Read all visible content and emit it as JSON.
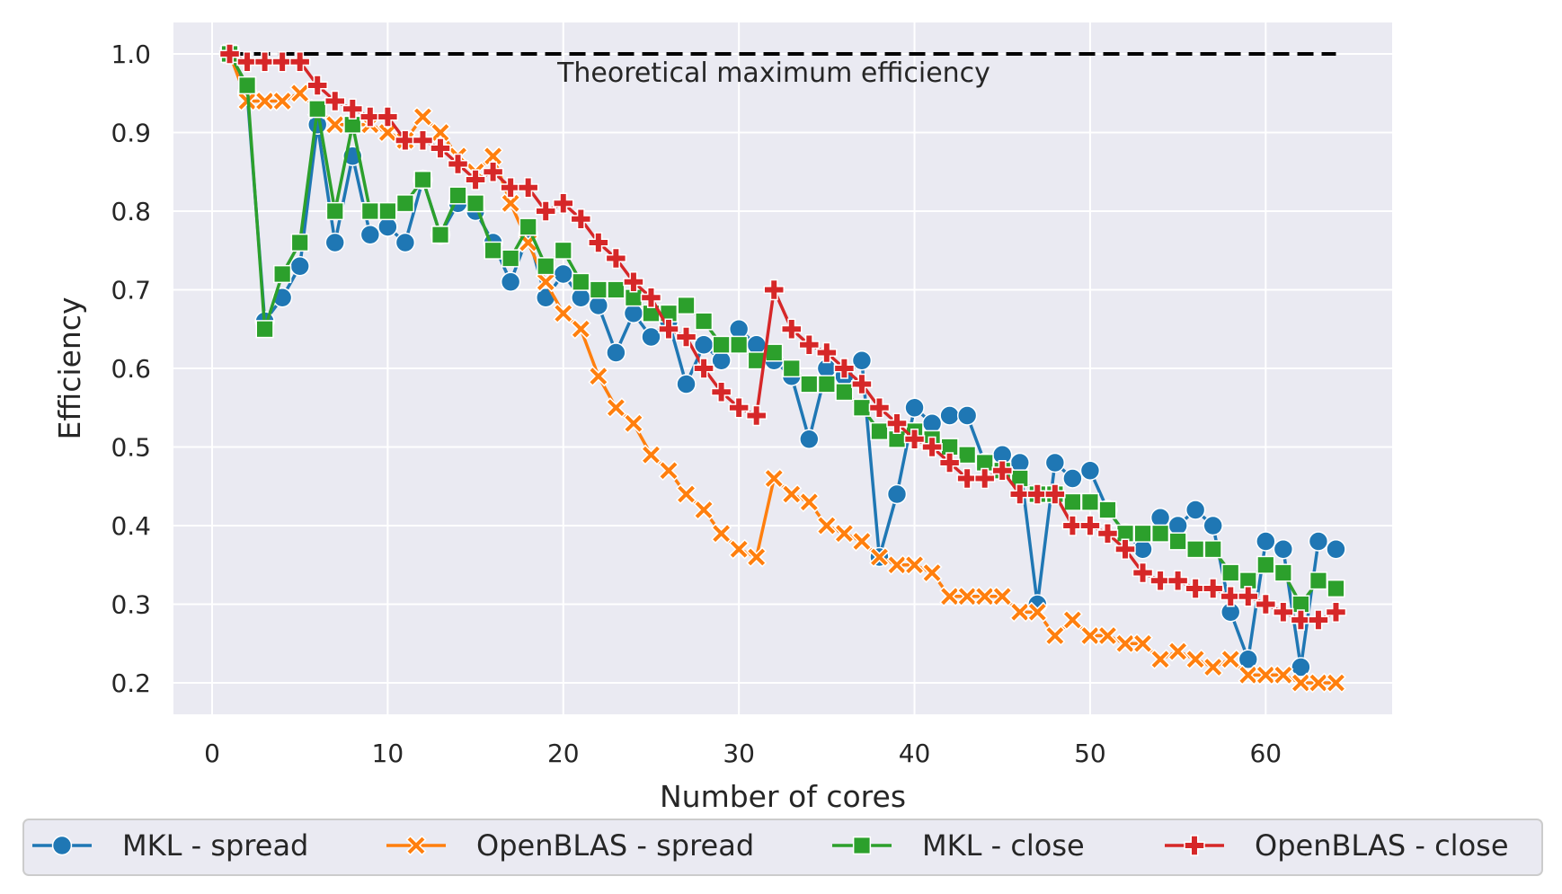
{
  "chart_data": {
    "type": "line",
    "xlabel": "Number of cores",
    "ylabel": "Efficiency",
    "xlim": [
      -2.2,
      67.2
    ],
    "ylim": [
      0.16,
      1.04
    ],
    "xticks": [
      0,
      10,
      20,
      30,
      40,
      50,
      60
    ],
    "yticks": [
      0.2,
      0.3,
      0.4,
      0.5,
      0.6,
      0.7,
      0.8,
      0.9,
      1.0
    ],
    "ytick_labels": [
      "0.2",
      "0.3",
      "0.4",
      "0.5",
      "0.6",
      "0.7",
      "0.8",
      "0.9",
      "1.0"
    ],
    "grid": true,
    "legend_position": "below",
    "reference_line": {
      "y": 1.0,
      "x": [
        1,
        64
      ],
      "style": "dashed",
      "color": "#000000",
      "label": "Theoretical maximum efficiency"
    },
    "x": [
      1,
      2,
      3,
      4,
      5,
      6,
      7,
      8,
      9,
      10,
      11,
      12,
      13,
      14,
      15,
      16,
      17,
      18,
      19,
      20,
      21,
      22,
      23,
      24,
      25,
      26,
      27,
      28,
      29,
      30,
      31,
      32,
      33,
      34,
      35,
      36,
      37,
      38,
      39,
      40,
      41,
      42,
      43,
      44,
      45,
      46,
      47,
      48,
      49,
      50,
      51,
      52,
      53,
      54,
      55,
      56,
      57,
      58,
      59,
      60,
      61,
      62,
      63,
      64
    ],
    "series": [
      {
        "name": "MKL - spread",
        "color": "#1f77b4",
        "marker": "circle",
        "values": [
          1.0,
          0.95,
          0.66,
          0.69,
          0.73,
          0.91,
          0.76,
          0.87,
          0.77,
          0.78,
          0.76,
          0.84,
          0.77,
          0.81,
          0.8,
          0.76,
          0.71,
          0.77,
          0.69,
          0.72,
          0.69,
          0.68,
          0.62,
          0.67,
          0.64,
          0.66,
          0.58,
          0.63,
          0.61,
          0.65,
          0.63,
          0.61,
          0.59,
          0.51,
          0.6,
          0.59,
          0.61,
          0.36,
          0.44,
          0.55,
          0.53,
          0.54,
          0.54,
          0.48,
          0.49,
          0.48,
          0.3,
          0.48,
          0.46,
          0.47,
          0.42,
          0.39,
          0.37,
          0.41,
          0.4,
          0.42,
          0.4,
          0.29,
          0.23,
          0.38,
          0.37,
          0.22,
          0.38,
          0.37
        ]
      },
      {
        "name": "OpenBLAS - spread",
        "color": "#ff7f0e",
        "marker": "x",
        "values": [
          1.0,
          0.94,
          0.94,
          0.94,
          0.95,
          0.93,
          0.91,
          0.91,
          0.91,
          0.9,
          0.89,
          0.92,
          0.9,
          0.87,
          0.85,
          0.87,
          0.81,
          0.76,
          0.71,
          0.67,
          0.65,
          0.59,
          0.55,
          0.53,
          0.49,
          0.47,
          0.44,
          0.42,
          0.39,
          0.37,
          0.36,
          0.46,
          0.44,
          0.43,
          0.4,
          0.39,
          0.38,
          0.36,
          0.35,
          0.35,
          0.34,
          0.31,
          0.31,
          0.31,
          0.31,
          0.29,
          0.29,
          0.26,
          0.28,
          0.26,
          0.26,
          0.25,
          0.25,
          0.23,
          0.24,
          0.23,
          0.22,
          0.23,
          0.21,
          0.21,
          0.21,
          0.2,
          0.2,
          0.2
        ]
      },
      {
        "name": "MKL - close",
        "color": "#2ca02c",
        "marker": "square",
        "values": [
          1.0,
          0.96,
          0.65,
          0.72,
          0.76,
          0.93,
          0.8,
          0.91,
          0.8,
          0.8,
          0.81,
          0.84,
          0.77,
          0.82,
          0.81,
          0.75,
          0.74,
          0.78,
          0.73,
          0.75,
          0.71,
          0.7,
          0.7,
          0.69,
          0.67,
          0.67,
          0.68,
          0.66,
          0.63,
          0.63,
          0.61,
          0.62,
          0.6,
          0.58,
          0.58,
          0.57,
          0.55,
          0.52,
          0.51,
          0.52,
          0.51,
          0.5,
          0.49,
          0.48,
          0.47,
          0.46,
          0.44,
          0.44,
          0.43,
          0.43,
          0.42,
          0.39,
          0.39,
          0.39,
          0.38,
          0.37,
          0.37,
          0.34,
          0.33,
          0.35,
          0.34,
          0.3,
          0.33,
          0.32
        ]
      },
      {
        "name": "OpenBLAS - close",
        "color": "#d62728",
        "marker": "plus",
        "values": [
          1.0,
          0.99,
          0.99,
          0.99,
          0.99,
          0.96,
          0.94,
          0.93,
          0.92,
          0.92,
          0.89,
          0.89,
          0.88,
          0.86,
          0.84,
          0.85,
          0.83,
          0.83,
          0.8,
          0.81,
          0.79,
          0.76,
          0.74,
          0.71,
          0.69,
          0.65,
          0.64,
          0.6,
          0.57,
          0.55,
          0.54,
          0.7,
          0.65,
          0.63,
          0.62,
          0.6,
          0.58,
          0.55,
          0.53,
          0.51,
          0.5,
          0.48,
          0.46,
          0.46,
          0.47,
          0.44,
          0.44,
          0.44,
          0.4,
          0.4,
          0.39,
          0.37,
          0.34,
          0.33,
          0.33,
          0.32,
          0.32,
          0.31,
          0.31,
          0.3,
          0.29,
          0.28,
          0.28,
          0.29
        ]
      }
    ]
  }
}
